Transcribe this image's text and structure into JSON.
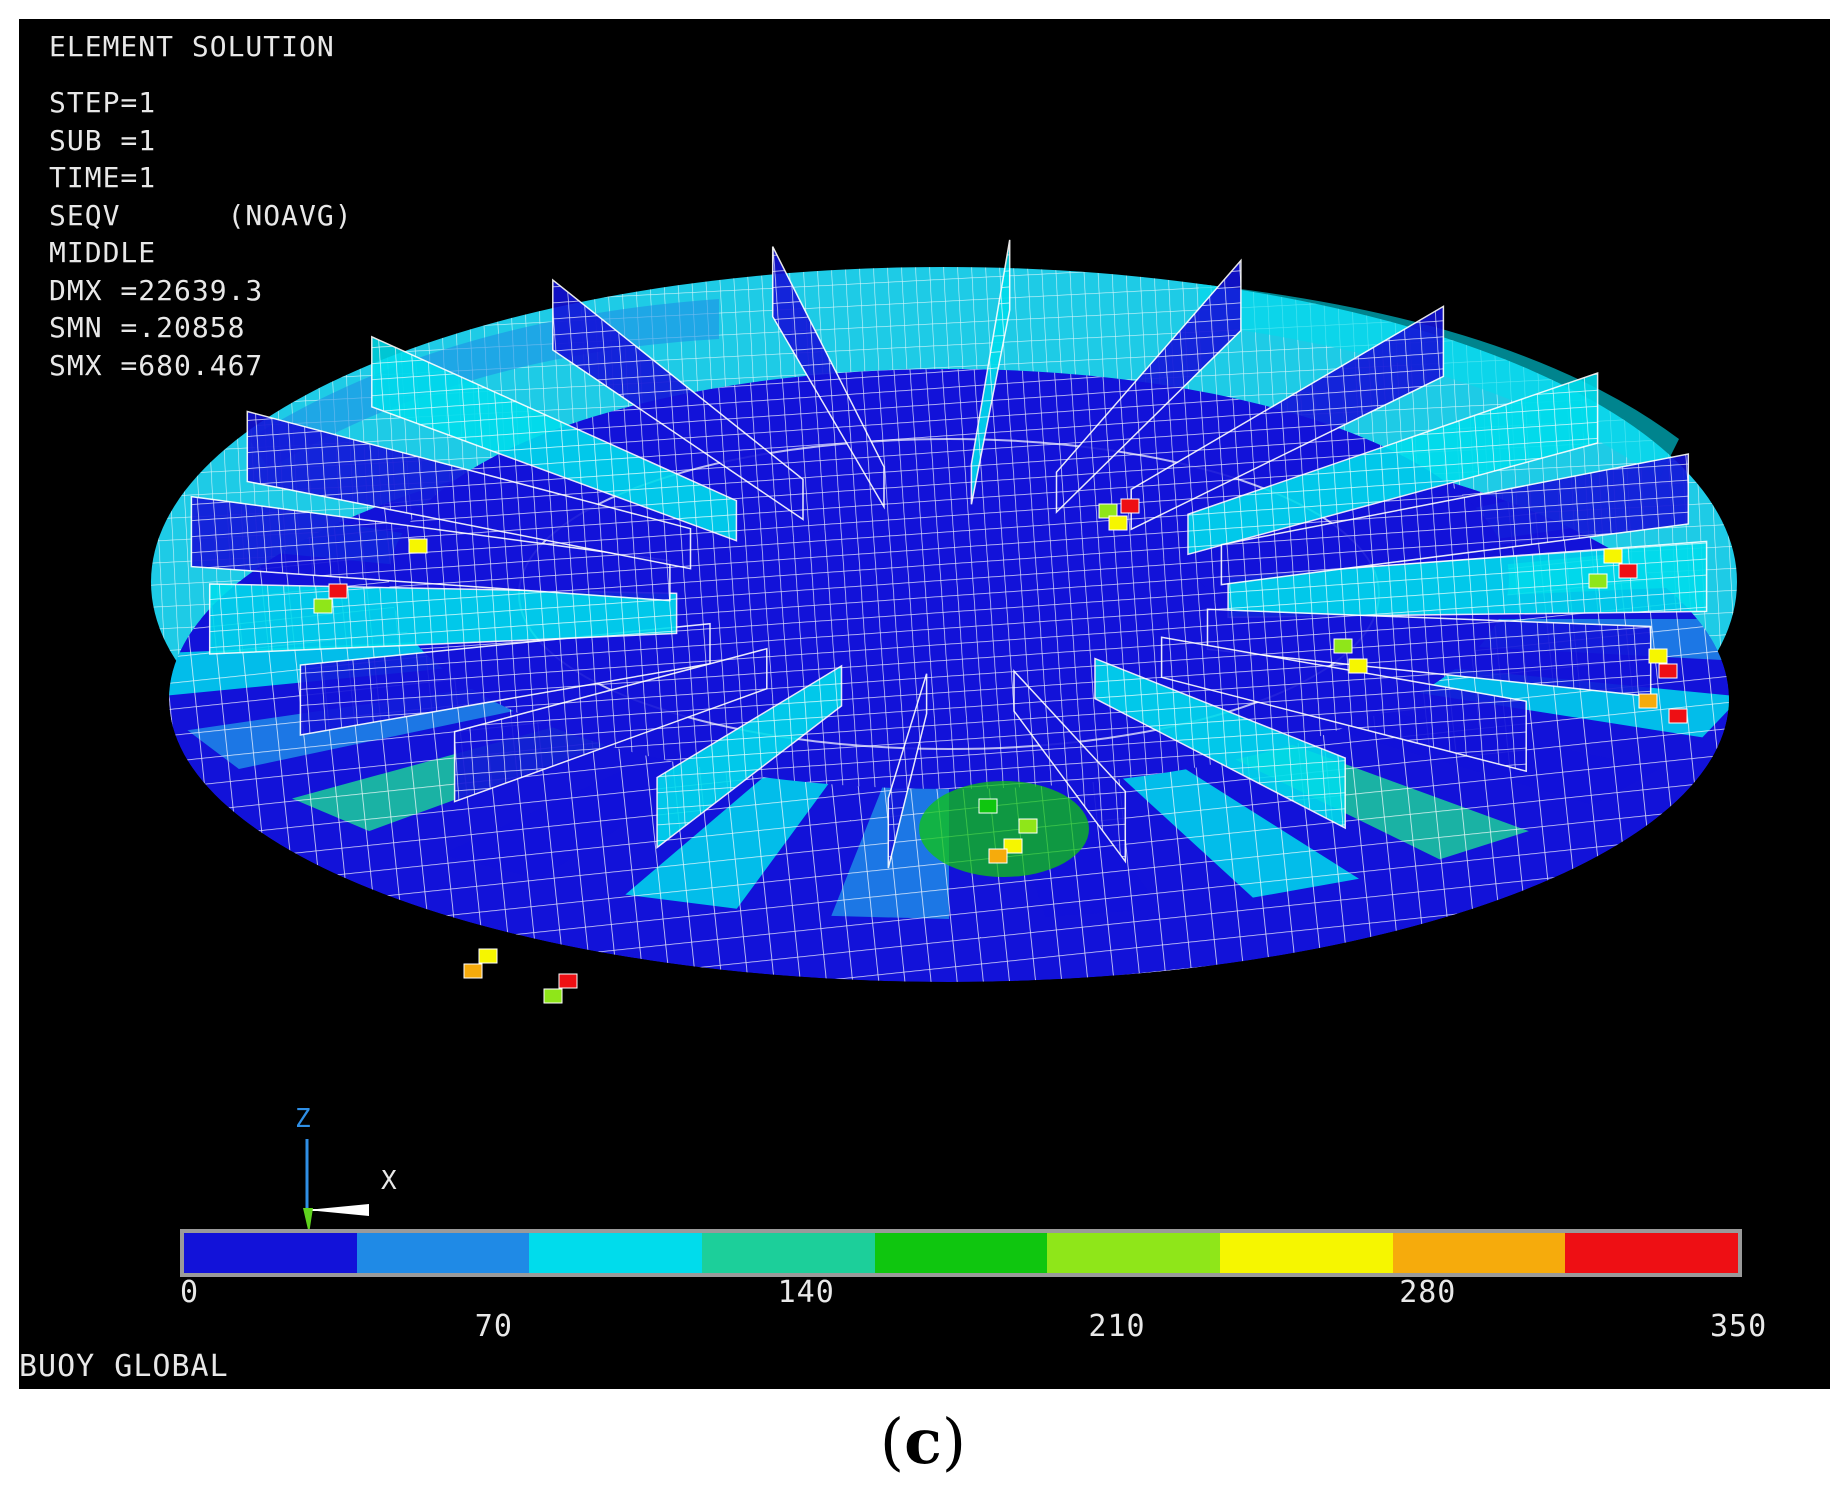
{
  "header": {
    "title": "ELEMENT SOLUTION"
  },
  "info": {
    "step": "STEP=1",
    "sub": "SUB =1",
    "time": "TIME=1",
    "seqv": "SEQV      (NOAVG)",
    "layer": "MIDDLE",
    "dmx": "DMX =22639.3",
    "smn": "SMN =.20858",
    "smx": "SMX =680.467"
  },
  "triad": {
    "z_label": "Z",
    "x_label": "X"
  },
  "legend": {
    "colors": [
      "#1212d9",
      "#1f8ae6",
      "#00dcec",
      "#1ccf9a",
      "#0fc60f",
      "#8fe619",
      "#f6f600",
      "#f6ab0c",
      "#ee0f14"
    ],
    "ticks": [
      {
        "label": "0",
        "row": "upper"
      },
      {
        "label": "70",
        "row": "lower"
      },
      {
        "label": "140",
        "row": "upper"
      },
      {
        "label": "210",
        "row": "lower"
      },
      {
        "label": "280",
        "row": "upper"
      },
      {
        "label": "350",
        "row": "lower"
      }
    ]
  },
  "footer": {
    "model_name": "BUOY GLOBAL"
  },
  "caption": {
    "open": "(",
    "letter": "c",
    "close": ")"
  }
}
